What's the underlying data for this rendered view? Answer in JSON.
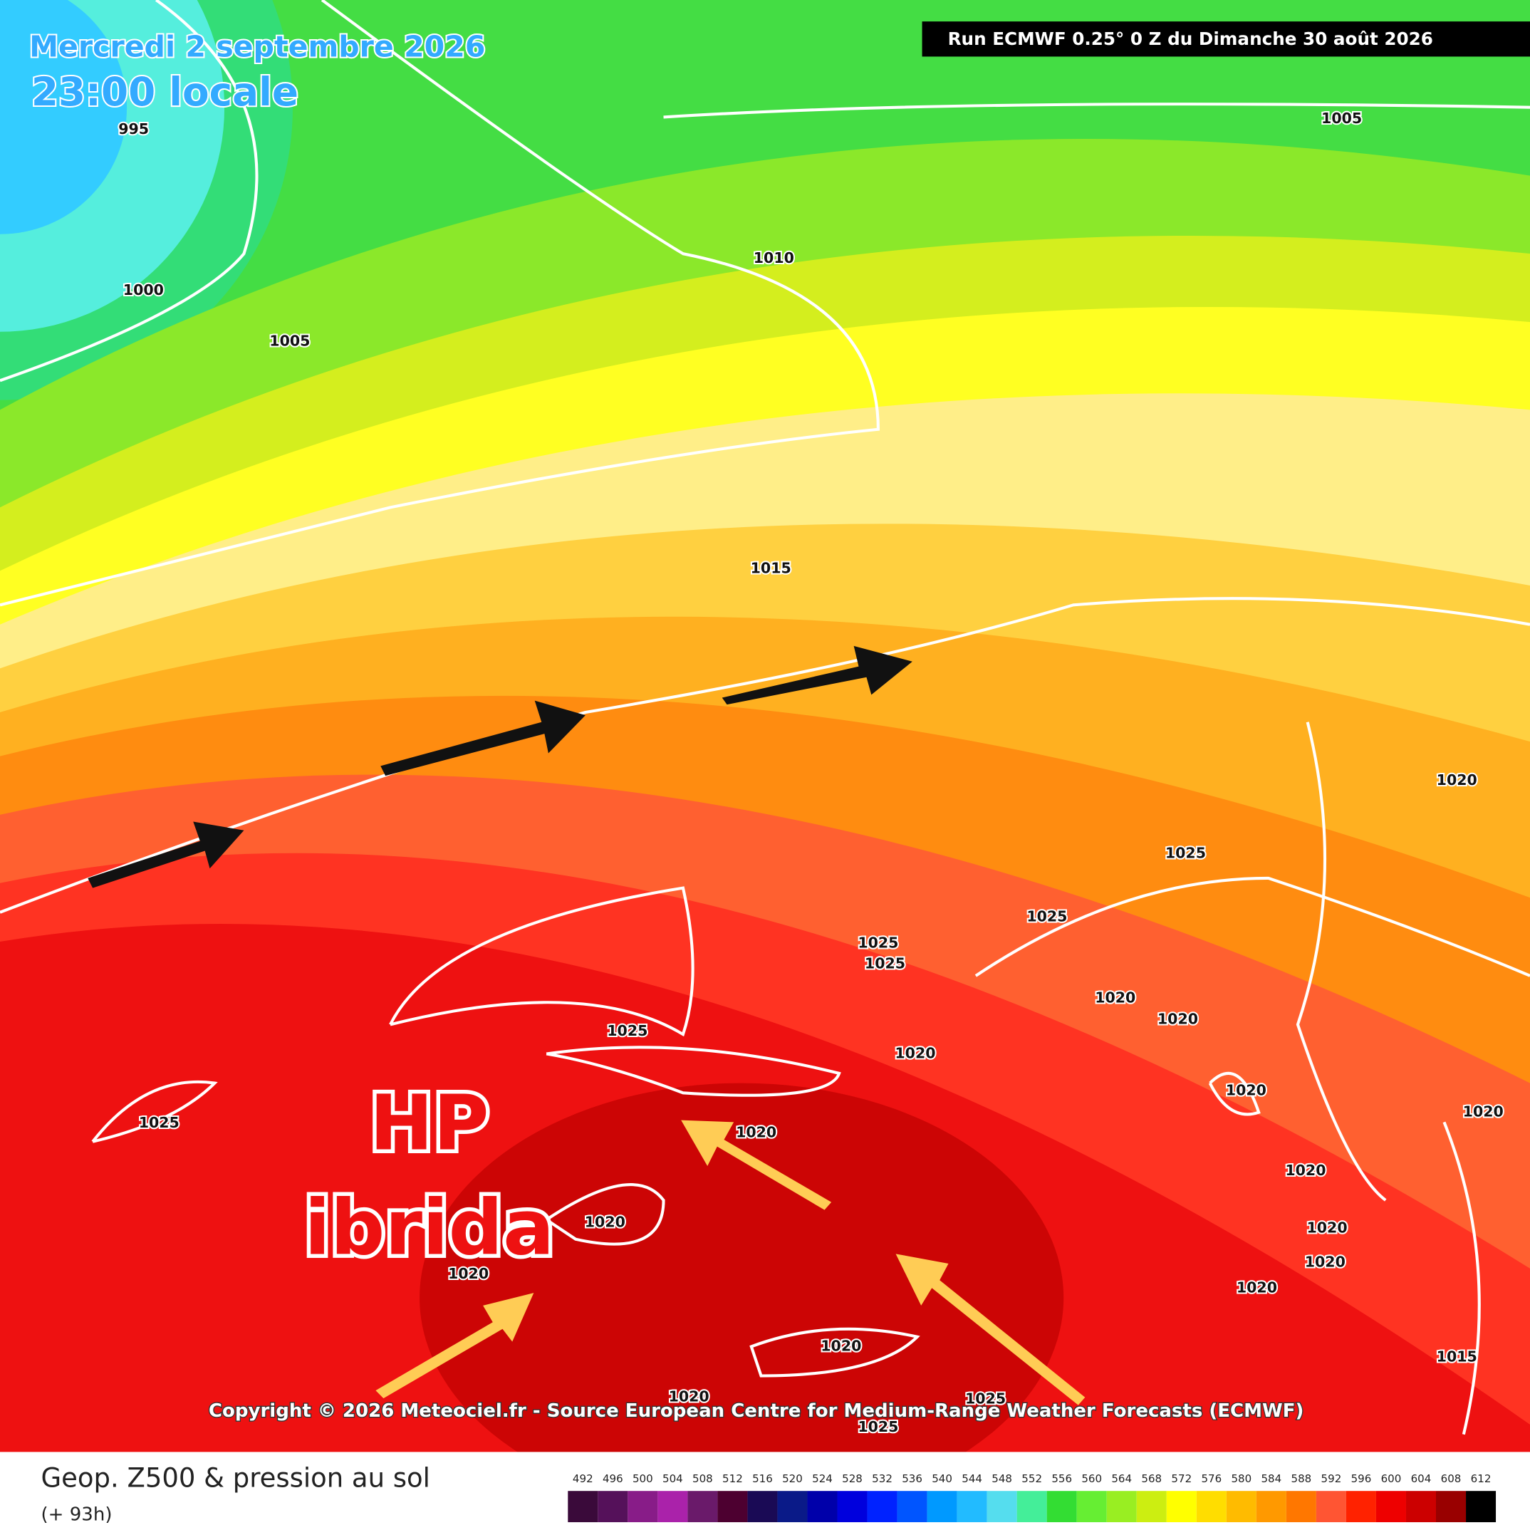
{
  "header": {
    "date": "Mercredi 2 septembre 2026",
    "time": "23:00 locale",
    "run": "Run ECMWF 0.25° 0 Z du Dimanche 30 août 2026"
  },
  "annotation": {
    "line1": "HP",
    "line2": "ibrida"
  },
  "isobar_labels": [
    "995",
    "1000",
    "1005",
    "1010",
    "1005",
    "1015",
    "1020",
    "1025",
    "1025",
    "1025",
    "1025",
    "1020",
    "1020",
    "1025",
    "1020",
    "1020",
    "1025",
    "1020",
    "1020",
    "1020",
    "1020",
    "1020",
    "1020",
    "1020",
    "1020",
    "1020",
    "1015",
    "1020",
    "1025",
    "1025"
  ],
  "copyright": "Copyright © 2026 Meteociel.fr - Source European Centre for Medium-Range Weather Forecasts (ECMWF)",
  "footer": {
    "title": "Geop. Z500 & pression au sol",
    "lead": "(+ 93h)"
  },
  "scale": {
    "labels": [
      492,
      496,
      500,
      504,
      508,
      512,
      516,
      520,
      524,
      528,
      532,
      536,
      540,
      544,
      548,
      552,
      556,
      560,
      564,
      568,
      572,
      576,
      580,
      584,
      588,
      592,
      596,
      600,
      604,
      608,
      612
    ],
    "colors": [
      "#3a0a3a",
      "#55115a",
      "#881c88",
      "#aa22aa",
      "#6a1a6a",
      "#4d0030",
      "#1a0a55",
      "#0a1a88",
      "#0000aa",
      "#0000dd",
      "#0022ff",
      "#0055ff",
      "#0099ff",
      "#22bbff",
      "#55ddee",
      "#44ee99",
      "#33dd33",
      "#66ee33",
      "#99ee22",
      "#ccee11",
      "#ffff00",
      "#ffdd00",
      "#ffbb00",
      "#ff9900",
      "#ff7700",
      "#ff5533",
      "#ff2200",
      "#ee0000",
      "#cc0000",
      "#990000",
      "#000000"
    ]
  }
}
